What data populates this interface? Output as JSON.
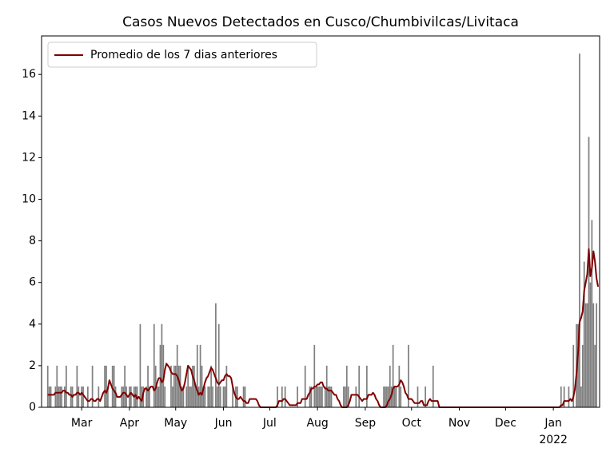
{
  "chart_data": {
    "type": "bar",
    "title": "Casos Nuevos Detectados en Cusco/Chumbivilcas/Livitaca",
    "x": [
      0,
      1,
      2,
      3,
      4,
      5,
      6,
      7,
      8,
      9,
      10,
      11,
      12,
      13,
      14,
      15,
      16,
      17,
      18,
      19,
      20,
      21,
      22,
      23,
      24,
      25,
      26,
      27,
      28,
      29,
      30,
      31,
      32,
      33,
      34,
      35,
      36,
      37,
      38,
      39,
      40,
      41,
      42,
      43,
      44,
      45,
      46,
      47,
      48,
      49,
      50,
      51,
      52,
      53,
      54,
      55,
      56,
      57,
      58,
      59,
      60,
      61,
      62,
      63,
      64,
      65,
      66,
      67,
      68,
      69,
      70,
      71,
      72,
      73,
      74,
      75,
      76,
      77,
      78,
      79,
      80,
      81,
      82,
      83,
      84,
      85,
      86,
      87,
      88,
      89,
      90,
      91,
      92,
      93,
      94,
      95,
      96,
      97,
      98,
      99,
      100,
      101,
      102,
      103,
      104,
      105,
      106,
      107,
      108,
      109,
      110,
      111,
      112,
      113,
      114,
      115,
      116,
      117,
      118,
      119,
      120,
      121,
      122,
      123,
      124,
      125,
      126,
      127,
      128,
      129,
      130,
      131,
      132,
      133,
      134,
      135,
      136,
      137,
      138,
      139,
      140,
      141,
      142,
      143,
      144,
      145,
      146,
      147,
      148,
      149,
      150,
      151,
      152,
      153,
      154,
      155,
      156,
      157,
      158,
      159,
      160,
      161,
      162,
      163,
      164,
      165,
      166,
      167,
      168,
      169,
      170,
      171,
      172,
      173,
      174,
      175,
      176,
      177,
      178,
      179,
      180,
      181,
      182,
      183,
      184,
      185,
      186,
      187,
      188,
      189,
      190,
      191,
      192,
      193,
      194,
      195,
      196,
      197,
      198,
      199,
      200,
      201,
      202,
      203,
      204,
      205,
      206,
      207,
      208,
      209,
      210,
      211,
      212,
      213,
      214,
      215,
      216,
      217,
      218,
      219,
      220,
      221,
      222,
      223,
      224,
      225,
      226,
      227,
      228,
      229,
      230,
      231,
      232,
      233,
      234,
      235,
      236,
      237,
      238,
      239,
      240,
      241,
      242,
      243,
      244,
      245,
      246,
      247,
      248,
      249,
      250,
      251,
      252,
      253,
      254,
      255,
      256,
      257,
      258,
      259,
      260,
      261,
      262,
      263,
      264,
      265,
      266,
      267,
      268,
      269,
      270,
      271,
      272,
      273,
      274,
      275,
      276,
      277,
      278,
      279,
      280,
      281,
      282,
      283,
      284,
      285,
      286,
      287,
      288,
      289,
      290,
      291,
      292,
      293,
      294,
      295,
      296,
      297,
      298,
      299,
      300,
      301,
      302,
      303,
      304,
      305,
      306,
      307,
      308,
      309,
      310,
      311,
      312,
      313,
      314,
      315,
      316,
      317,
      318,
      319,
      320,
      321,
      322,
      323,
      324,
      325,
      326,
      327,
      328,
      329,
      330,
      331,
      332,
      333,
      334,
      335,
      336,
      337,
      338,
      339,
      340,
      341,
      342,
      343,
      344,
      345,
      346,
      347,
      348,
      349,
      350,
      351,
      352,
      353,
      354,
      355,
      356,
      357,
      358,
      359,
      360,
      361
    ],
    "series": [
      {
        "type": "bar",
        "color": "#808080",
        "values": [
          0,
          0,
          0,
          0,
          2,
          1,
          1,
          0,
          0,
          1,
          2,
          1,
          1,
          1,
          0,
          1,
          2,
          0,
          0,
          1,
          1,
          0,
          0,
          2,
          1,
          0,
          1,
          1,
          0,
          0,
          1,
          0,
          0,
          2,
          0,
          0,
          0,
          1,
          0,
          0,
          0,
          2,
          2,
          1,
          0,
          0,
          2,
          2,
          1,
          0,
          0,
          0,
          1,
          1,
          2,
          1,
          0,
          1,
          1,
          0,
          1,
          1,
          1,
          0,
          4,
          1,
          1,
          0,
          1,
          2,
          1,
          0,
          0,
          4,
          2,
          1,
          1,
          3,
          4,
          3,
          1,
          0,
          0,
          0,
          2,
          1,
          2,
          2,
          3,
          2,
          2,
          1,
          1,
          0,
          1,
          2,
          1,
          1,
          2,
          2,
          1,
          3,
          1,
          3,
          2,
          1,
          1,
          0,
          1,
          1,
          2,
          1,
          0,
          5,
          1,
          4,
          1,
          0,
          1,
          1,
          2,
          0,
          0,
          0,
          1,
          0,
          1,
          1,
          0,
          0,
          0,
          1,
          1,
          0,
          0,
          0,
          0,
          0,
          0,
          0,
          0,
          0,
          0,
          0,
          0,
          0,
          0,
          0,
          0,
          0,
          0,
          0,
          0,
          1,
          0,
          0,
          1,
          0,
          1,
          0,
          0,
          0,
          0,
          0,
          0,
          0,
          1,
          0,
          0,
          0,
          0,
          2,
          0,
          0,
          1,
          1,
          0,
          3,
          1,
          1,
          1,
          1,
          1,
          0,
          1,
          2,
          1,
          1,
          1,
          0,
          0,
          0,
          0,
          0,
          0,
          0,
          1,
          1,
          2,
          1,
          0,
          0,
          0,
          0,
          1,
          0,
          2,
          0,
          0,
          0,
          0,
          2,
          0,
          0,
          0,
          0,
          0,
          0,
          0,
          0,
          0,
          0,
          1,
          1,
          1,
          1,
          2,
          1,
          3,
          1,
          1,
          0,
          2,
          1,
          0,
          0,
          0,
          0,
          3,
          0,
          0,
          0,
          0,
          0,
          1,
          0,
          0,
          0,
          0,
          1,
          0,
          0,
          0,
          0,
          2,
          0,
          0,
          0,
          0,
          0,
          0,
          0,
          0,
          0,
          0,
          0,
          0,
          0,
          0,
          0,
          0,
          0,
          0,
          0,
          0,
          0,
          0,
          0,
          0,
          0,
          0,
          0,
          0,
          0,
          0,
          0,
          0,
          0,
          0,
          0,
          0,
          0,
          0,
          0,
          0,
          0,
          0,
          0,
          0,
          0,
          0,
          0,
          0,
          0,
          0,
          0,
          0,
          0,
          0,
          0,
          0,
          0,
          0,
          0,
          0,
          0,
          0,
          0,
          0,
          0,
          0,
          0,
          0,
          0,
          0,
          0,
          0,
          0,
          0,
          0,
          0,
          0,
          0,
          0,
          0,
          0,
          0,
          1,
          0,
          1,
          0,
          0,
          1,
          0,
          0,
          3,
          0,
          4,
          4,
          17,
          1,
          3,
          7,
          5,
          5,
          13,
          6,
          9,
          5,
          3,
          5,
          0
        ]
      },
      {
        "type": "line",
        "name": "Promedio de los 7 dias anteriores",
        "color": "#800000",
        "values": [
          null,
          null,
          null,
          null,
          0.6,
          0.6,
          0.6,
          0.6,
          0.6,
          0.7,
          0.7,
          0.7,
          0.7,
          0.7,
          0.8,
          0.8,
          0.7,
          0.7,
          0.6,
          0.6,
          0.5,
          0.6,
          0.6,
          0.7,
          0.7,
          0.6,
          0.7,
          0.6,
          0.5,
          0.4,
          0.3,
          0.3,
          0.4,
          0.4,
          0.3,
          0.3,
          0.4,
          0.4,
          0.3,
          0.5,
          0.7,
          0.8,
          0.7,
          0.9,
          1.3,
          1.1,
          0.9,
          0.8,
          0.7,
          0.5,
          0.5,
          0.5,
          0.6,
          0.7,
          0.7,
          0.6,
          0.5,
          0.6,
          0.7,
          0.6,
          0.5,
          0.6,
          0.4,
          0.5,
          0.4,
          0.3,
          0.7,
          0.9,
          0.9,
          0.8,
          0.9,
          1.0,
          1.0,
          0.8,
          0.9,
          1.2,
          1.4,
          1.4,
          1.2,
          1.3,
          1.8,
          2.1,
          2.0,
          1.9,
          1.7,
          1.6,
          1.6,
          1.6,
          1.5,
          1.3,
          1.0,
          0.8,
          0.9,
          1.2,
          1.6,
          2.0,
          1.9,
          1.8,
          1.5,
          1.3,
          1.0,
          0.8,
          0.6,
          0.7,
          0.6,
          0.9,
          1.2,
          1.4,
          1.5,
          1.7,
          1.9,
          1.8,
          1.6,
          1.4,
          1.2,
          1.1,
          1.2,
          1.3,
          1.3,
          1.5,
          1.6,
          1.5,
          1.5,
          1.4,
          1.0,
          0.7,
          0.5,
          0.4,
          0.4,
          0.5,
          0.4,
          0.3,
          0.3,
          0.2,
          0.2,
          0.4,
          0.4,
          0.4,
          0.4,
          0.4,
          0.3,
          0.1,
          0,
          0,
          0,
          0,
          0,
          0,
          0,
          0,
          0,
          0,
          0,
          0.1,
          0.3,
          0.3,
          0.3,
          0.4,
          0.4,
          0.3,
          0.2,
          0.1,
          0.1,
          0.1,
          0.1,
          0.1,
          0.2,
          0.2,
          0.2,
          0.4,
          0.4,
          0.4,
          0.4,
          0.6,
          0.7,
          0.9,
          0.9,
          1.0,
          1.0,
          1.1,
          1.1,
          1.2,
          1.2,
          1.0,
          0.9,
          0.9,
          0.8,
          0.8,
          0.8,
          0.7,
          0.6,
          0.6,
          0.4,
          0.3,
          0.1,
          0,
          0,
          0,
          0,
          0.1,
          0.3,
          0.6,
          0.6,
          0.6,
          0.6,
          0.6,
          0.5,
          0.4,
          0.3,
          0.4,
          0.4,
          0.4,
          0.6,
          0.6,
          0.6,
          0.7,
          0.6,
          0.4,
          0.3,
          0.1,
          0,
          0,
          0,
          0,
          0.1,
          0.3,
          0.4,
          0.6,
          0.9,
          1.0,
          1.0,
          1.0,
          1.1,
          1.3,
          1.2,
          1.0,
          0.7,
          0.6,
          0.4,
          0.4,
          0.4,
          0.3,
          0.2,
          0.2,
          0.2,
          0.2,
          0.3,
          0.3,
          0.1,
          0.1,
          0.1,
          0.3,
          0.4,
          0.3,
          0.3,
          0.3,
          0.3,
          0.3,
          0,
          0,
          0,
          0,
          0,
          0,
          0,
          0,
          0,
          0,
          0,
          0,
          0,
          0,
          0,
          0,
          0,
          0,
          0,
          0,
          0,
          0,
          0,
          0,
          0,
          0,
          0,
          0,
          0,
          0,
          0,
          0,
          0,
          0,
          0,
          0,
          0,
          0,
          0,
          0,
          0,
          0,
          0,
          0,
          0,
          0,
          0,
          0,
          0,
          0,
          0,
          0,
          0,
          0,
          0,
          0,
          0,
          0,
          0,
          0,
          0,
          0,
          0,
          0,
          0,
          0,
          0,
          0,
          0,
          0,
          0,
          0,
          0,
          0,
          0,
          0,
          0,
          0,
          0,
          0.1,
          0.1,
          0.3,
          0.3,
          0.3,
          0.3,
          0.4,
          0.3,
          0.5,
          0.9,
          1.6,
          2.6,
          4.1,
          4.3,
          4.6,
          5.6,
          6.0,
          6.4,
          7.6,
          6.3,
          6.7,
          7.5,
          7.0,
          6.2,
          5.8
        ]
      }
    ],
    "xlim": [
      0,
      362
    ],
    "xticks": [
      {
        "value": 26,
        "label": "Mar"
      },
      {
        "value": 57,
        "label": "Apr"
      },
      {
        "value": 87,
        "label": "May"
      },
      {
        "value": 118,
        "label": "Jun"
      },
      {
        "value": 148,
        "label": "Jul"
      },
      {
        "value": 179,
        "label": "Aug"
      },
      {
        "value": 210,
        "label": "Sep"
      },
      {
        "value": 240,
        "label": "Oct"
      },
      {
        "value": 271,
        "label": "Nov"
      },
      {
        "value": 301,
        "label": "Dec"
      },
      {
        "value": 332,
        "label": "Jan"
      }
    ],
    "x_offset_label": "2022",
    "ylim": [
      0,
      17.85
    ],
    "yticks": [
      0,
      2,
      4,
      6,
      8,
      10,
      12,
      14,
      16
    ],
    "grid": false,
    "legend": "upper-left"
  }
}
